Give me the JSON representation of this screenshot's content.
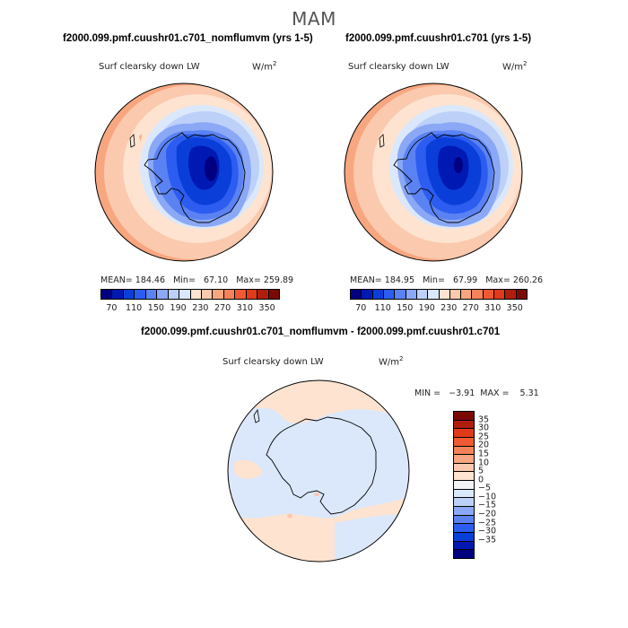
{
  "season": "MAM",
  "panels": [
    {
      "title": "f2000.099.pmf.cuushr01.c701_nomflumvm (yrs 1-5)",
      "variable": "Surf clearsky down LW",
      "units": "W/m",
      "units_exp": "2",
      "stats": "MEAN= 184.46   Min=   67.10   Max= 259.89"
    },
    {
      "title": "f2000.099.pmf.cuushr01.c701 (yrs 1-5)",
      "variable": "Surf clearsky down LW",
      "units": "W/m",
      "units_exp": "2",
      "stats": "MEAN= 184.95   Min=   67.99   Max= 260.26"
    }
  ],
  "diff": {
    "title": "f2000.099.pmf.cuushr01.c701_nomflumvm - f2000.099.pmf.cuushr01.c701",
    "variable": "Surf clearsky down LW",
    "units": "W/m",
    "units_exp": "2",
    "stats": "MIN =   −3.91  MAX =    5.31"
  },
  "colorbar": {
    "colors": [
      "#000080",
      "#0019b3",
      "#0a3ed8",
      "#2c5df0",
      "#5a82f2",
      "#8aa8f5",
      "#bcd0f8",
      "#dbe8fb",
      "#fde3d0",
      "#fbc9ad",
      "#f8a67f",
      "#f58259",
      "#ef5a33",
      "#e13a1a",
      "#b01e0b",
      "#7a0a04"
    ],
    "labels": [
      "70",
      "110",
      "150",
      "190",
      "230",
      "270",
      "310",
      "350"
    ]
  },
  "diff_colorbar": {
    "colors": [
      "#7a0a04",
      "#b01e0b",
      "#e13a1a",
      "#ef5a33",
      "#f58259",
      "#f8a67f",
      "#fbc9ad",
      "#fde3d0",
      "#f3f3f5",
      "#dbe8fb",
      "#bcd0f8",
      "#8aa8f5",
      "#5a82f2",
      "#2c5df0",
      "#0a3ed8",
      "#0019b3",
      "#000080"
    ],
    "labels": [
      "35",
      "30",
      "25",
      "20",
      "15",
      "10",
      "5",
      "0",
      "−5",
      "−10",
      "−15",
      "−20",
      "−25",
      "−30",
      "−35"
    ]
  }
}
